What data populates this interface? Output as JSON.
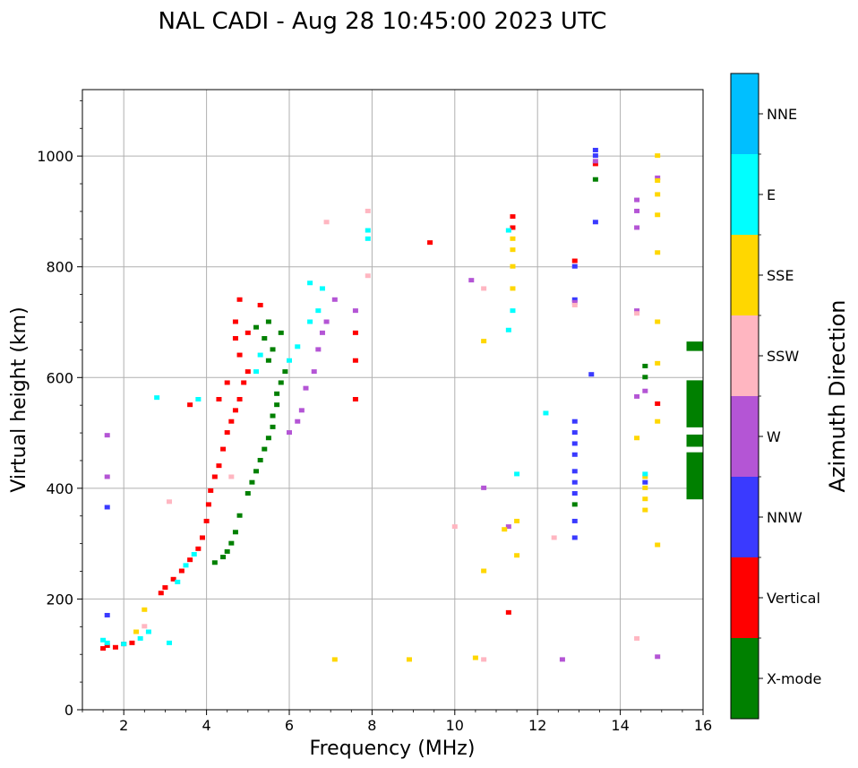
{
  "chart_data": {
    "type": "scatter",
    "title": "NAL CADI - Aug 28 10:45:00 2023 UTC",
    "xlabel": "Frequency (MHz)",
    "ylabel": "Virtual height (km)",
    "xlim": [
      1,
      16
    ],
    "ylim": [
      0,
      1120
    ],
    "grid": true,
    "x_ticks": [
      2,
      4,
      6,
      8,
      10,
      12,
      14,
      16
    ],
    "y_ticks": [
      0,
      200,
      400,
      600,
      800,
      1000
    ],
    "colorbar": {
      "title": "Azimuth Direction",
      "categories": [
        {
          "label": "X-mode",
          "color": "#008000"
        },
        {
          "label": "Vertical",
          "color": "#ff0000"
        },
        {
          "label": "NNW",
          "color": "#3a3aff"
        },
        {
          "label": "W",
          "color": "#b455d5"
        },
        {
          "label": "SSW",
          "color": "#ffb6c1"
        },
        {
          "label": "SSE",
          "color": "#ffd700"
        },
        {
          "label": "E",
          "color": "#00ffff"
        },
        {
          "label": "NNE",
          "color": "#00bfff"
        }
      ]
    },
    "series": [
      {
        "name": "Vertical",
        "trace": [
          [
            1.5,
            110
          ],
          [
            1.6,
            115
          ],
          [
            1.8,
            112
          ],
          [
            2.0,
            118
          ],
          [
            2.2,
            120
          ],
          [
            2.9,
            210
          ],
          [
            3.0,
            220
          ],
          [
            3.2,
            235
          ],
          [
            3.4,
            250
          ],
          [
            3.6,
            270
          ],
          [
            3.8,
            290
          ],
          [
            3.9,
            310
          ],
          [
            4.0,
            340
          ],
          [
            4.05,
            370
          ],
          [
            4.1,
            395
          ],
          [
            4.2,
            420
          ],
          [
            4.3,
            440
          ],
          [
            4.4,
            470
          ],
          [
            4.5,
            500
          ],
          [
            4.6,
            520
          ],
          [
            4.7,
            540
          ],
          [
            4.8,
            560
          ],
          [
            4.9,
            590
          ],
          [
            5.0,
            610
          ],
          [
            4.8,
            640
          ],
          [
            4.7,
            670
          ],
          [
            4.7,
            700
          ],
          [
            4.8,
            740
          ],
          [
            5.3,
            730
          ],
          [
            3.6,
            550
          ],
          [
            4.3,
            560
          ],
          [
            4.5,
            590
          ],
          [
            5.0,
            680
          ],
          [
            7.6,
            560
          ],
          [
            7.6,
            630
          ],
          [
            7.6,
            680
          ],
          [
            11.4,
            870
          ],
          [
            11.4,
            890
          ],
          [
            14.9,
            552
          ],
          [
            9.4,
            843
          ],
          [
            11.3,
            175
          ],
          [
            13.4,
            985
          ],
          [
            12.9,
            810
          ]
        ]
      },
      {
        "name": "X-mode",
        "trace": [
          [
            4.2,
            265
          ],
          [
            4.4,
            275
          ],
          [
            4.5,
            285
          ],
          [
            4.6,
            300
          ],
          [
            4.7,
            320
          ],
          [
            4.8,
            350
          ],
          [
            5.0,
            390
          ],
          [
            5.1,
            410
          ],
          [
            5.2,
            430
          ],
          [
            5.3,
            450
          ],
          [
            5.4,
            470
          ],
          [
            5.5,
            490
          ],
          [
            5.6,
            510
          ],
          [
            5.6,
            530
          ],
          [
            5.7,
            550
          ],
          [
            5.7,
            570
          ],
          [
            5.8,
            590
          ],
          [
            5.9,
            610
          ],
          [
            5.5,
            630
          ],
          [
            5.6,
            650
          ],
          [
            5.4,
            670
          ],
          [
            5.2,
            690
          ],
          [
            5.5,
            700
          ],
          [
            5.8,
            680
          ],
          [
            12.9,
            370
          ],
          [
            13.4,
            957
          ],
          [
            14.6,
            600
          ],
          [
            14.6,
            620
          ]
        ]
      },
      {
        "name": "NNW",
        "trace": [
          [
            1.6,
            170
          ],
          [
            1.6,
            365
          ],
          [
            12.9,
            310
          ],
          [
            12.9,
            340
          ],
          [
            12.9,
            390
          ],
          [
            12.9,
            410
          ],
          [
            12.9,
            430
          ],
          [
            12.9,
            460
          ],
          [
            12.9,
            480
          ],
          [
            12.9,
            500
          ],
          [
            12.9,
            520
          ],
          [
            12.9,
            740
          ],
          [
            12.9,
            800
          ],
          [
            13.3,
            605
          ],
          [
            13.4,
            880
          ],
          [
            13.4,
            1000
          ],
          [
            13.4,
            1010
          ],
          [
            14.6,
            410
          ]
        ]
      },
      {
        "name": "W",
        "trace": [
          [
            1.6,
            495
          ],
          [
            1.6,
            420
          ],
          [
            6.0,
            500
          ],
          [
            6.2,
            520
          ],
          [
            6.3,
            540
          ],
          [
            6.4,
            580
          ],
          [
            6.6,
            610
          ],
          [
            6.7,
            650
          ],
          [
            6.8,
            680
          ],
          [
            6.9,
            700
          ],
          [
            7.1,
            740
          ],
          [
            7.6,
            720
          ],
          [
            10.4,
            775
          ],
          [
            10.7,
            400
          ],
          [
            11.3,
            330
          ],
          [
            12.6,
            90
          ],
          [
            12.9,
            735
          ],
          [
            13.4,
            990
          ],
          [
            14.4,
            565
          ],
          [
            14.4,
            720
          ],
          [
            14.4,
            870
          ],
          [
            14.4,
            900
          ],
          [
            14.4,
            920
          ],
          [
            14.6,
            575
          ],
          [
            14.9,
            95
          ],
          [
            14.9,
            960
          ]
        ]
      },
      {
        "name": "SSW",
        "trace": [
          [
            2.5,
            150
          ],
          [
            3.1,
            375
          ],
          [
            4.6,
            420
          ],
          [
            6.9,
            880
          ],
          [
            7.9,
            783
          ],
          [
            7.9,
            900
          ],
          [
            10.0,
            330
          ],
          [
            10.7,
            760
          ],
          [
            10.7,
            90
          ],
          [
            12.4,
            310
          ],
          [
            14.4,
            128
          ],
          [
            14.4,
            715
          ],
          [
            12.9,
            730
          ]
        ]
      },
      {
        "name": "SSE",
        "trace": [
          [
            2.3,
            140
          ],
          [
            2.5,
            180
          ],
          [
            7.1,
            90
          ],
          [
            8.9,
            90
          ],
          [
            10.7,
            665
          ],
          [
            10.7,
            250
          ],
          [
            10.5,
            93
          ],
          [
            11.2,
            325
          ],
          [
            11.5,
            340
          ],
          [
            11.5,
            278
          ],
          [
            11.4,
            760
          ],
          [
            11.4,
            800
          ],
          [
            11.4,
            830
          ],
          [
            11.4,
            850
          ],
          [
            14.6,
            360
          ],
          [
            14.6,
            380
          ],
          [
            14.6,
            400
          ],
          [
            14.6,
            420
          ],
          [
            14.9,
            297
          ],
          [
            14.9,
            520
          ],
          [
            14.9,
            625
          ],
          [
            14.9,
            700
          ],
          [
            14.9,
            825
          ],
          [
            14.9,
            893
          ],
          [
            14.9,
            930
          ],
          [
            14.9,
            955
          ],
          [
            14.9,
            1000
          ],
          [
            14.4,
            490
          ]
        ]
      },
      {
        "name": "E",
        "trace": [
          [
            1.5,
            125
          ],
          [
            1.6,
            120
          ],
          [
            2.0,
            118
          ],
          [
            2.4,
            128
          ],
          [
            2.6,
            140
          ],
          [
            3.1,
            120
          ],
          [
            3.3,
            230
          ],
          [
            3.5,
            260
          ],
          [
            3.7,
            280
          ],
          [
            2.8,
            563
          ],
          [
            3.8,
            560
          ],
          [
            5.2,
            610
          ],
          [
            5.3,
            640
          ],
          [
            6.0,
            630
          ],
          [
            6.2,
            655
          ],
          [
            6.5,
            700
          ],
          [
            6.5,
            770
          ],
          [
            6.7,
            720
          ],
          [
            6.8,
            760
          ],
          [
            7.9,
            850
          ],
          [
            7.9,
            865
          ],
          [
            11.3,
            685
          ],
          [
            11.3,
            865
          ],
          [
            11.5,
            425
          ],
          [
            12.2,
            535
          ],
          [
            14.6,
            425
          ],
          [
            11.4,
            720
          ]
        ]
      }
    ],
    "blocks": [
      {
        "name": "X-mode",
        "x_range": [
          15.6,
          16.0
        ],
        "y_ranges": [
          [
            380,
            465
          ],
          [
            475,
            497
          ],
          [
            510,
            595
          ],
          [
            648,
            665
          ]
        ]
      }
    ]
  }
}
